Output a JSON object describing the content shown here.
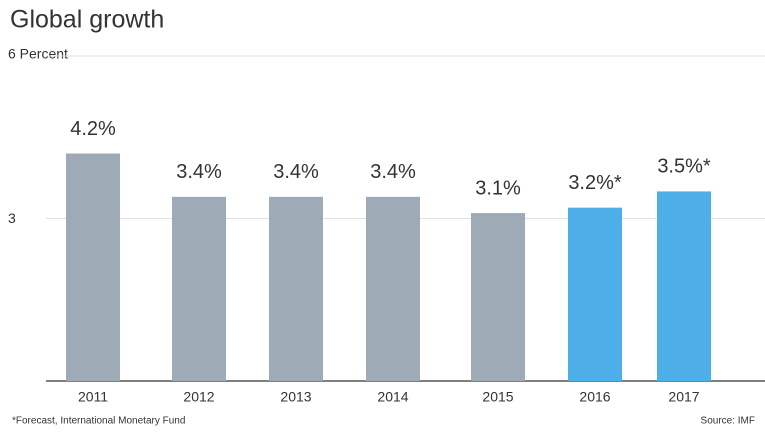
{
  "chart_data": {
    "type": "bar",
    "title": "Global growth",
    "categories": [
      "2011",
      "2012",
      "2013",
      "2014",
      "2015",
      "2016",
      "2017"
    ],
    "values": [
      4.2,
      3.4,
      3.4,
      3.4,
      3.1,
      3.2,
      3.5
    ],
    "value_labels": [
      "4.2%",
      "3.4%",
      "3.4%",
      "3.4%",
      "3.1%",
      "3.2%*",
      "3.5%*"
    ],
    "colors": [
      "#9eaab5",
      "#9eaab5",
      "#9eaab5",
      "#9eaab5",
      "#9eaab5",
      "#4daee8",
      "#4daee8"
    ],
    "ylim": [
      0,
      6
    ],
    "yticks": [
      3,
      {
        "value": 6,
        "label": "6 Percent"
      }
    ],
    "grid": true,
    "footnote": "*Forecast, International Monetary Fund",
    "source": "Source: IMF"
  }
}
